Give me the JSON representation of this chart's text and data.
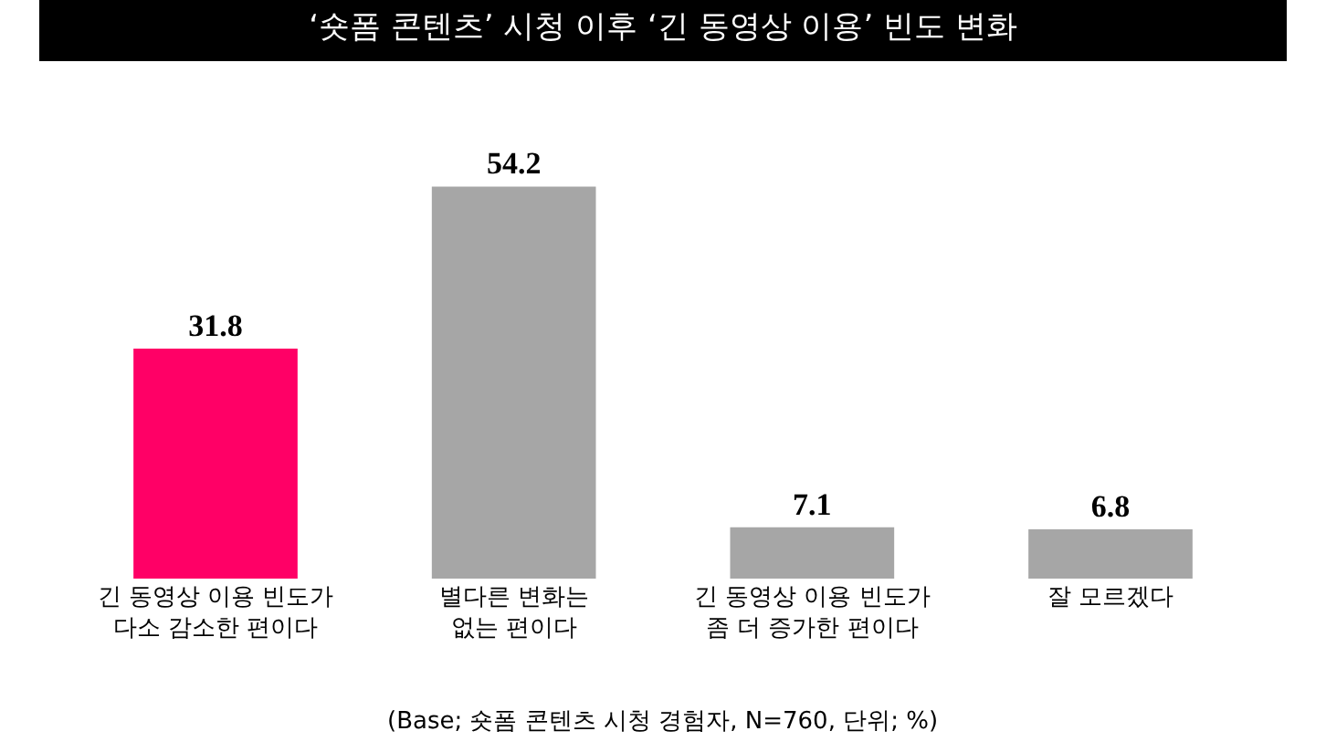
{
  "chart_data": {
    "type": "bar",
    "title": "‘숏폼 콘텐츠’ 시청 이후 ‘긴 동영상 이용’ 빈도 변화",
    "categories": [
      "긴 동영상 이용 빈도가\n다소 감소한 편이다",
      "별다른 변화는\n없는 편이다",
      "긴 동영상 이용 빈도가\n좀 더 증가한 편이다",
      "잘 모르겠다"
    ],
    "values": [
      31.8,
      54.2,
      7.1,
      6.8
    ],
    "colors": [
      "#ff0066",
      "#a6a6a6",
      "#a6a6a6",
      "#a6a6a6"
    ],
    "data_labels": true,
    "annotations": [
      "(Base; 숏폼 콘텐츠 시청 경험자, N=760, 단위; %)"
    ]
  }
}
